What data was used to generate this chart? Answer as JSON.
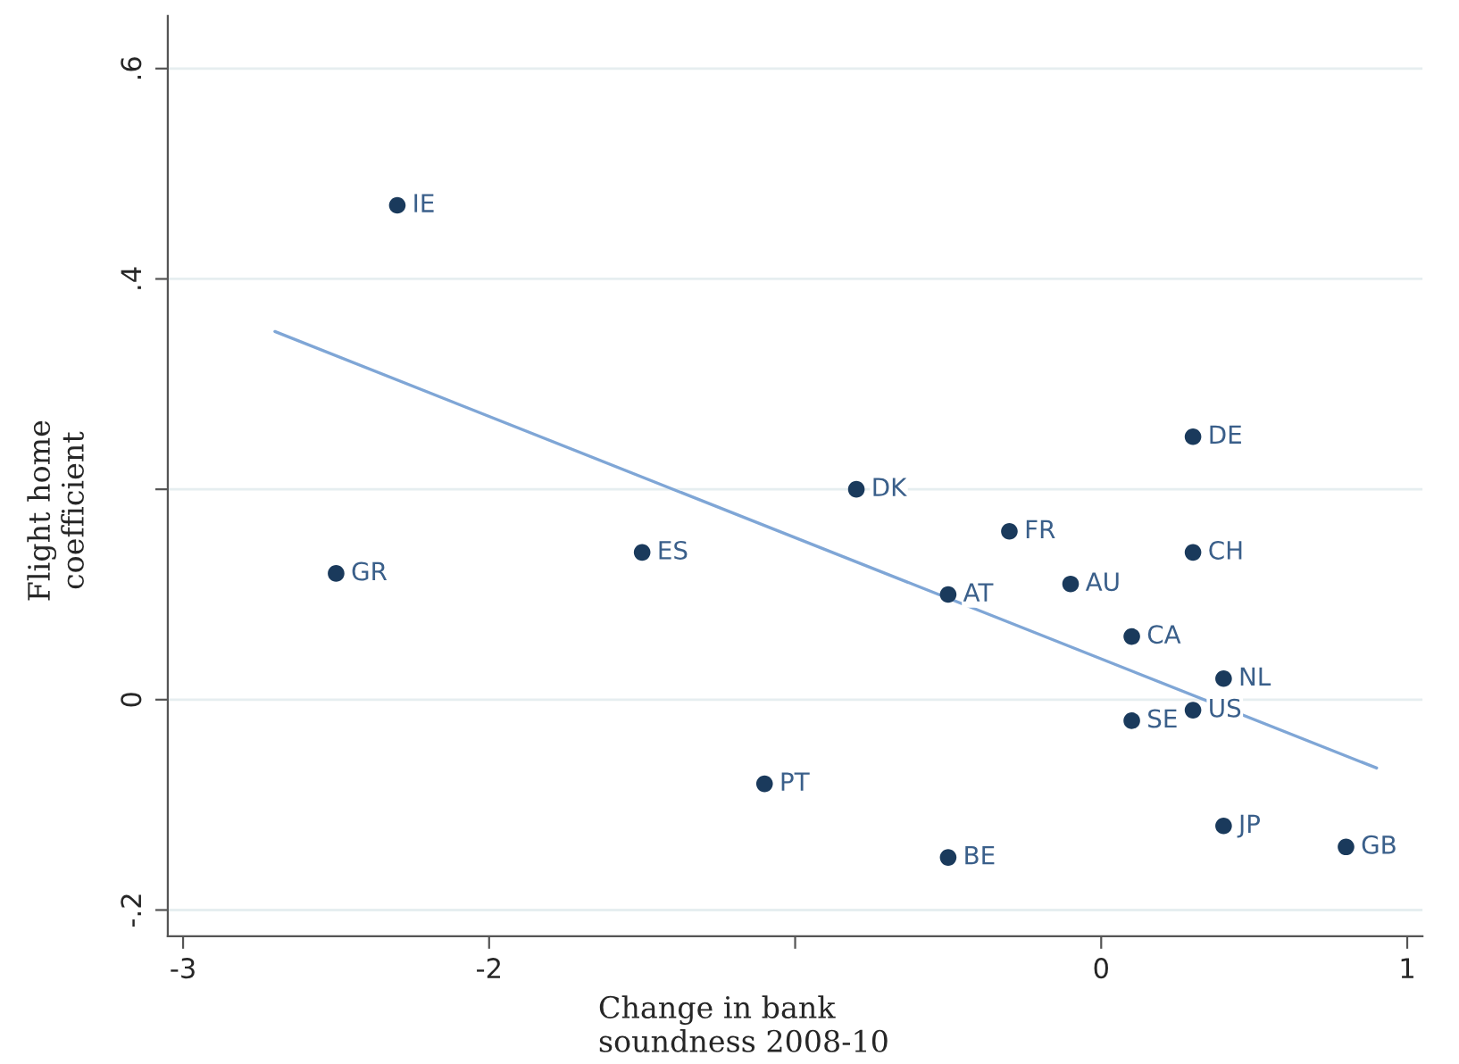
{
  "chart_data": {
    "type": "scatter",
    "xlabel": "Change in bank\nsoundness 2008-10",
    "ylabel": "Flight home\ncoefficient",
    "xlim": [
      -3.05,
      1.05
    ],
    "ylim": [
      -0.225,
      0.65
    ],
    "xticks": [
      {
        "value": -3,
        "label": "-3"
      },
      {
        "value": -2,
        "label": "-2"
      },
      {
        "value": -1,
        "label": null
      },
      {
        "value": 0,
        "label": "0"
      },
      {
        "value": 1,
        "label": "1"
      }
    ],
    "yticks": [
      {
        "value": -0.2,
        "label": "-.2"
      },
      {
        "value": 0,
        "label": "0"
      },
      {
        "value": 0.2,
        "label": null
      },
      {
        "value": 0.4,
        "label": ".4"
      },
      {
        "value": 0.6,
        "label": ".6"
      }
    ],
    "grid": "y",
    "series": [
      {
        "marker": "circle",
        "color": "#1a3a5c",
        "x": [
          -2.3,
          -2.5,
          -1.5,
          -0.8,
          -0.3,
          -0.5,
          -0.1,
          0.3,
          0.3,
          0.1,
          0.4,
          0.3,
          0.1,
          -1.1,
          0.4,
          0.8,
          -0.5
        ],
        "values": [
          0.47,
          0.12,
          0.14,
          0.2,
          0.16,
          0.1,
          0.11,
          0.25,
          0.14,
          0.06,
          0.02,
          -0.01,
          -0.02,
          -0.08,
          -0.12,
          -0.14,
          -0.15
        ]
      },
      {
        "type": "line",
        "color": "#7fa6d6",
        "x": [
          -2.7,
          0.9
        ],
        "values": [
          0.35,
          -0.065
        ]
      }
    ],
    "annotations": [
      {
        "text": "IE",
        "x": -2.3,
        "y": 0.47
      },
      {
        "text": "GR",
        "x": -2.5,
        "y": 0.12
      },
      {
        "text": "ES",
        "x": -1.5,
        "y": 0.14
      },
      {
        "text": "DK",
        "x": -0.8,
        "y": 0.2
      },
      {
        "text": "FR",
        "x": -0.3,
        "y": 0.16
      },
      {
        "text": "AT",
        "x": -0.5,
        "y": 0.1
      },
      {
        "text": "AU",
        "x": -0.1,
        "y": 0.11
      },
      {
        "text": "DE",
        "x": 0.3,
        "y": 0.25
      },
      {
        "text": "CH",
        "x": 0.3,
        "y": 0.14
      },
      {
        "text": "CA",
        "x": 0.1,
        "y": 0.06
      },
      {
        "text": "NL",
        "x": 0.4,
        "y": 0.02
      },
      {
        "text": "US",
        "x": 0.3,
        "y": -0.01
      },
      {
        "text": "SE",
        "x": 0.1,
        "y": -0.02
      },
      {
        "text": "PT",
        "x": -1.1,
        "y": -0.08
      },
      {
        "text": "JP",
        "x": 0.4,
        "y": -0.12
      },
      {
        "text": "GB",
        "x": 0.8,
        "y": -0.14
      },
      {
        "text": "BE",
        "x": -0.5,
        "y": -0.15
      }
    ]
  }
}
